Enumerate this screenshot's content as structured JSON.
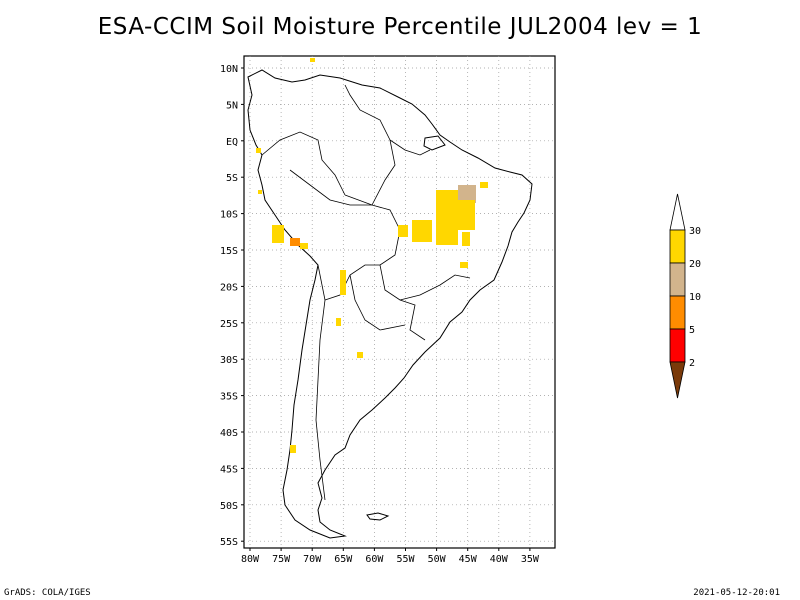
{
  "title": "ESA-CCIM Soil Moisture Percentile JUL2004 lev = 1",
  "lat_ticks": [
    "10N",
    "5N",
    "EQ",
    "5S",
    "10S",
    "15S",
    "20S",
    "25S",
    "30S",
    "35S",
    "40S",
    "45S",
    "50S",
    "55S"
  ],
  "lon_ticks": [
    "80W",
    "75W",
    "70W",
    "65W",
    "60W",
    "55W",
    "50W",
    "45W",
    "40W",
    "35W"
  ],
  "colorbar": {
    "labels": [
      "2",
      "5",
      "10",
      "20",
      "30"
    ],
    "colors": [
      "#7a3a0a",
      "#ff0000",
      "#ff8c00",
      "#d2b48c",
      "#ffd700",
      "#ffffff"
    ]
  },
  "footer": {
    "left": "GrADS: COLA/IGES",
    "right": "2021-05-12-20:01"
  }
}
